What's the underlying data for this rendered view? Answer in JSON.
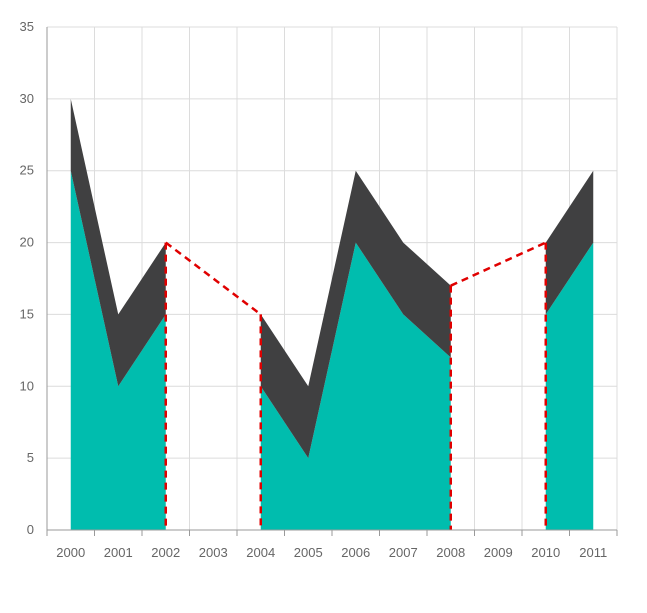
{
  "chart_data": {
    "type": "area",
    "stacked": true,
    "categories": [
      "2000",
      "2001",
      "2002",
      "2003",
      "2004",
      "2005",
      "2006",
      "2007",
      "2008",
      "2009",
      "2010",
      "2011"
    ],
    "series": [
      {
        "values": [
          25,
          10,
          15,
          null,
          10,
          5,
          20,
          15,
          12,
          null,
          15,
          20
        ],
        "color": "#00bdae"
      },
      {
        "values": [
          5,
          5,
          5,
          null,
          5,
          5,
          5,
          5,
          5,
          null,
          5,
          5
        ],
        "color": "#404041"
      }
    ],
    "empty_point_mode": "dashed-connector",
    "empty_point_color": "#e00000",
    "yticks": [
      0,
      5,
      10,
      15,
      20,
      25,
      30,
      35
    ],
    "ylim": [
      0,
      35
    ],
    "title": "",
    "xlabel": "",
    "ylabel": "",
    "grid": true,
    "legend": "none"
  }
}
